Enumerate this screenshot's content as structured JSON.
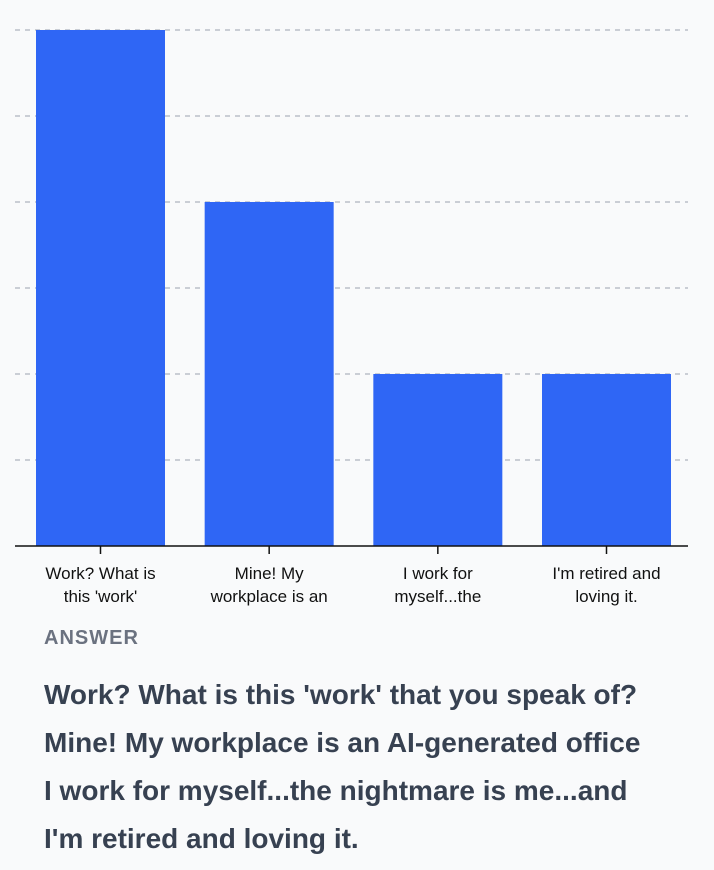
{
  "chart_data": {
    "type": "bar",
    "categories": [
      "Work? What is this 'work'",
      "Mine! My workplace is an",
      "I work for myself...the",
      "I'm retired and loving it."
    ],
    "category_lines": [
      [
        "Work? What is",
        "this 'work'"
      ],
      [
        "Mine! My",
        "workplace is an"
      ],
      [
        "I work for",
        "myself...the"
      ],
      [
        "I'm retired and",
        "loving it."
      ]
    ],
    "values": [
      6,
      4,
      2,
      2
    ],
    "ylim": [
      0,
      6
    ],
    "grid": true,
    "bar_color": "#2f66f5"
  },
  "answers": {
    "header": "ANSWER",
    "items": [
      "Work? What is this 'work' that you speak of?",
      "Mine! My workplace is an AI-generated office",
      "I work for myself...the nightmare is me...and",
      "I'm retired and loving it."
    ]
  }
}
